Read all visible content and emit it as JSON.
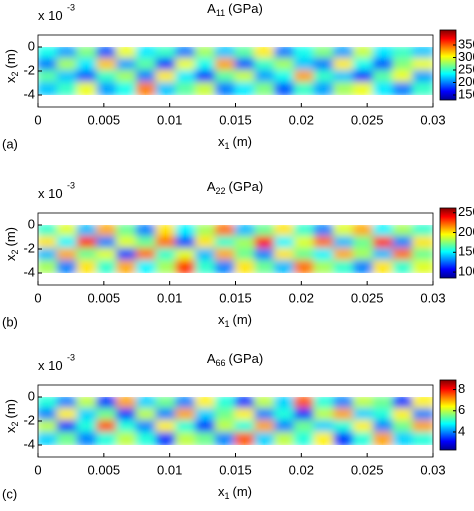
{
  "chart_data": [
    {
      "type": "heatmap",
      "title": "A",
      "title_sub": "11",
      "title_unit": "(GPa)",
      "panel_label": "(a)",
      "x_label": "x",
      "x_label_sub": "1",
      "x_label_unit": "(m)",
      "y_label": "x",
      "y_label_sub": "2",
      "y_label_unit": "(m)",
      "y_scale_label": "x 10",
      "y_scale_exp": "-3",
      "xlim": [
        0,
        0.03
      ],
      "xticks": [
        0,
        0.005,
        0.01,
        0.015,
        0.02,
        0.025,
        0.03
      ],
      "ylim": [
        -5,
        1
      ],
      "yticks": [
        0,
        -2,
        -4
      ],
      "clim": [
        130,
        410
      ],
      "cticks": [
        350,
        300,
        250,
        200,
        150
      ],
      "z": [
        [
          240,
          210,
          270,
          190,
          300,
          230,
          250,
          200,
          280,
          220,
          260,
          310,
          200,
          240,
          270,
          210,
          290,
          230,
          250,
          220
        ],
        [
          200,
          280,
          230,
          320,
          210,
          260,
          180,
          300,
          240,
          330,
          190,
          250,
          280,
          220,
          200,
          310,
          240,
          190,
          270,
          300
        ],
        [
          260,
          220,
          190,
          250,
          280,
          200,
          310,
          230,
          180,
          260,
          290,
          210,
          240,
          330,
          250,
          220,
          180,
          260,
          300,
          210
        ],
        [
          220,
          250,
          300,
          210,
          240,
          340,
          220,
          260,
          290,
          200,
          230,
          270,
          190,
          250,
          210,
          280,
          300,
          230,
          200,
          250
        ]
      ]
    },
    {
      "type": "heatmap",
      "title": "A",
      "title_sub": "22",
      "title_unit": "(GPa)",
      "panel_label": "(b)",
      "x_label": "x",
      "x_label_sub": "1",
      "x_label_unit": "(m)",
      "y_label": "x",
      "y_label_sub": "2",
      "y_label_unit": "(m)",
      "y_scale_label": "x 10",
      "y_scale_exp": "-3",
      "xlim": [
        0,
        0.03
      ],
      "xticks": [
        0,
        0.005,
        0.01,
        0.015,
        0.02,
        0.025,
        0.03
      ],
      "ylim": [
        -5,
        1
      ],
      "yticks": [
        0,
        -2,
        -4
      ],
      "clim": [
        85,
        262
      ],
      "cticks": [
        250,
        200,
        150,
        100
      ],
      "z": [
        [
          160,
          190,
          140,
          210,
          170,
          130,
          200,
          150,
          180,
          220,
          140,
          170,
          200,
          160,
          130,
          190,
          210,
          150,
          180,
          160
        ],
        [
          200,
          150,
          230,
          130,
          190,
          170,
          220,
          120,
          200,
          160,
          180,
          240,
          150,
          190,
          220,
          140,
          170,
          230,
          130,
          200
        ],
        [
          140,
          210,
          170,
          190,
          120,
          220,
          160,
          190,
          140,
          210,
          170,
          130,
          200,
          170,
          150,
          210,
          180,
          140,
          220,
          170
        ],
        [
          180,
          130,
          200,
          160,
          210,
          150,
          180,
          230,
          160,
          130,
          200,
          170,
          140,
          220,
          180,
          160,
          130,
          200,
          160,
          190
        ]
      ]
    },
    {
      "type": "heatmap",
      "title": "A",
      "title_sub": "66",
      "title_unit": "(GPa)",
      "panel_label": "(c)",
      "x_label": "x",
      "x_label_sub": "1",
      "x_label_unit": "(m)",
      "y_label": "x",
      "y_label_sub": "2",
      "y_label_unit": "(m)",
      "y_scale_label": "x 10",
      "y_scale_exp": "-3",
      "xlim": [
        0,
        0.03
      ],
      "xticks": [
        0,
        0.005,
        0.01,
        0.015,
        0.02,
        0.025,
        0.03
      ],
      "ylim": [
        -5,
        1
      ],
      "yticks": [
        0,
        -2,
        -4
      ],
      "clim": [
        2.3,
        8.9
      ],
      "cticks": [
        8,
        6,
        4
      ],
      "z": [
        [
          5,
          4,
          6,
          3.5,
          7,
          4.5,
          5.5,
          4,
          6.5,
          5,
          3.5,
          6,
          4.5,
          7.5,
          5,
          4,
          6,
          5.5,
          3.5,
          6.5
        ],
        [
          4,
          6.5,
          4.5,
          5.5,
          3.5,
          6,
          4,
          7,
          4.5,
          5.5,
          6.5,
          4,
          5,
          3.5,
          6,
          7,
          4.5,
          5,
          6.5,
          4
        ],
        [
          6,
          3.5,
          5,
          7.5,
          5,
          4,
          6.5,
          5,
          3.5,
          6,
          5,
          7,
          4,
          5.5,
          4.5,
          5,
          6.5,
          4,
          5.5,
          7
        ],
        [
          4.5,
          5.5,
          4,
          5,
          6,
          5,
          3.5,
          6,
          5.5,
          4,
          7.5,
          4.5,
          6,
          5,
          6.5,
          3.5,
          5,
          7,
          4.5,
          5
        ]
      ]
    }
  ]
}
